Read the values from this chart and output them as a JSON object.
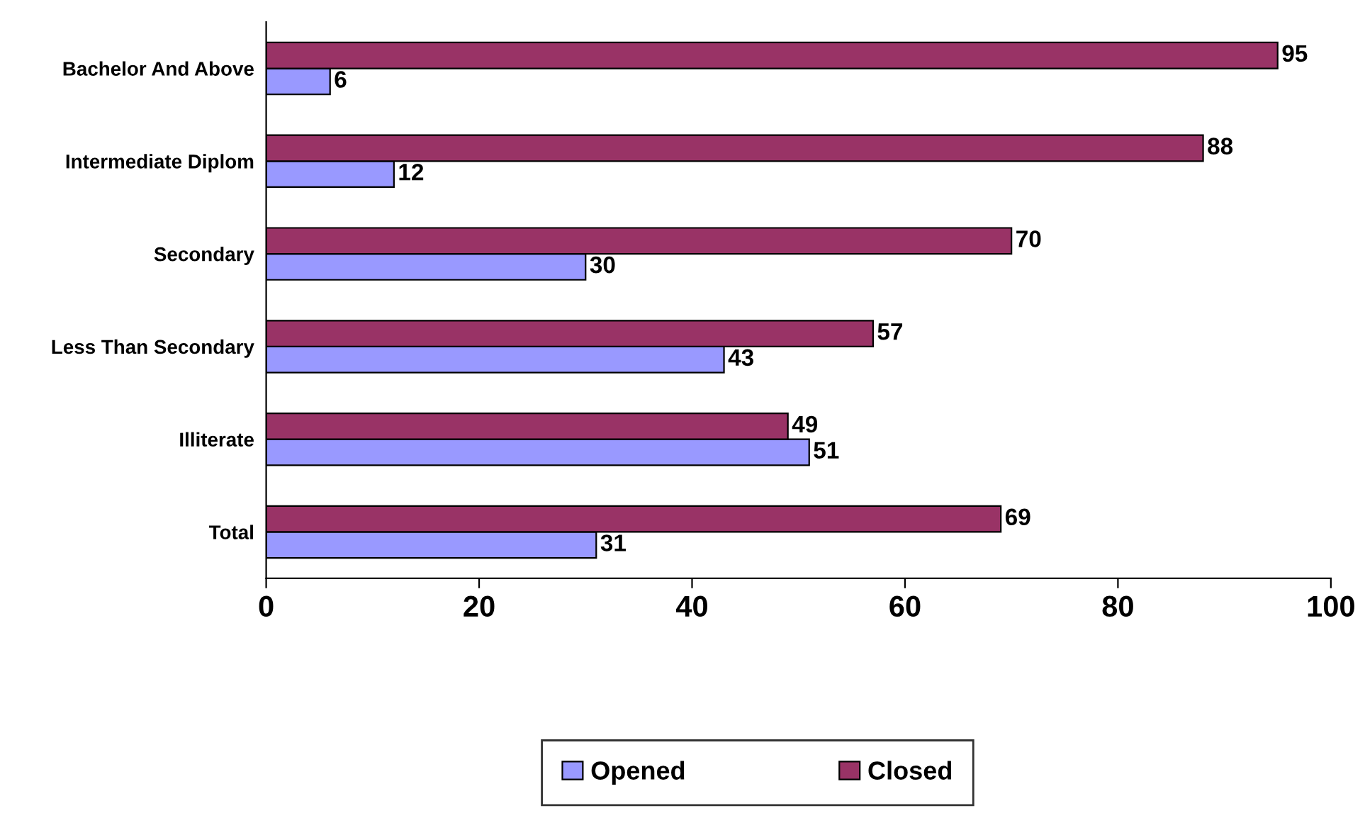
{
  "chart_data": {
    "type": "bar",
    "orientation": "horizontal",
    "categories": [
      "Bachelor And Above",
      "Intermediate Diplom",
      "Secondary",
      "Less Than Secondary",
      "Illiterate",
      "Total"
    ],
    "series": [
      {
        "name": "Opened",
        "color": "#9999ff",
        "values": [
          6,
          12,
          30,
          43,
          51,
          31
        ]
      },
      {
        "name": "Closed",
        "color": "#993366",
        "values": [
          95,
          88,
          70,
          57,
          49,
          69
        ]
      }
    ],
    "xlim": [
      0,
      100
    ],
    "xticks": [
      0,
      20,
      40,
      60,
      80,
      100
    ],
    "grid": false,
    "legend": "bottom",
    "data_labels": true
  }
}
